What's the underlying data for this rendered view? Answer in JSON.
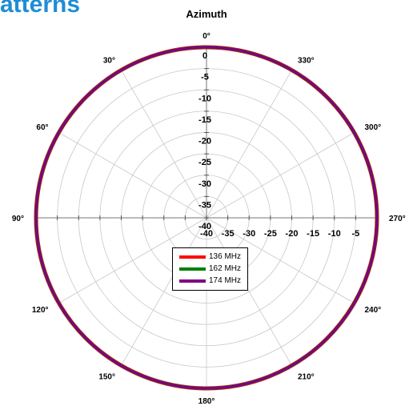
{
  "header": {
    "title_fragment": "atterns"
  },
  "chart_data": {
    "type": "polar-line",
    "title": "Azimuth",
    "angular_axis": {
      "direction": "counterclockwise",
      "zero_at": "top",
      "tick_step_deg": 30,
      "tick_labels": [
        "0°",
        "30°",
        "60°",
        "90°",
        "120°",
        "150°",
        "180°",
        "210°",
        "240°",
        "270°",
        "300°",
        "330°"
      ]
    },
    "radial_axis": {
      "range": [
        -40,
        0
      ],
      "tick_step": 5,
      "tick_labels_vertical": [
        "-40",
        "-35",
        "-30",
        "-25",
        "-20",
        "-15",
        "-10",
        "-5",
        "0"
      ],
      "tick_labels_horizontal": [
        "-40",
        "-35",
        "-30",
        "-25",
        "-20",
        "-15",
        "-10",
        "-5"
      ]
    },
    "grid": true,
    "legend": {
      "placement": "center-below"
    },
    "series": [
      {
        "name": "136 MHz",
        "color": "#ff0000",
        "theta_deg": [
          0,
          90,
          180,
          270
        ],
        "r_db": [
          0,
          0,
          0,
          0
        ]
      },
      {
        "name": "162 MHz",
        "color": "#008000",
        "theta_deg": [
          0,
          90,
          180,
          270
        ],
        "r_db": [
          0,
          0,
          0,
          0
        ]
      },
      {
        "name": "174 MHz",
        "color": "#800080",
        "theta_deg": [
          0,
          90,
          180,
          270
        ],
        "r_db": [
          0,
          0,
          0,
          0
        ]
      }
    ]
  }
}
